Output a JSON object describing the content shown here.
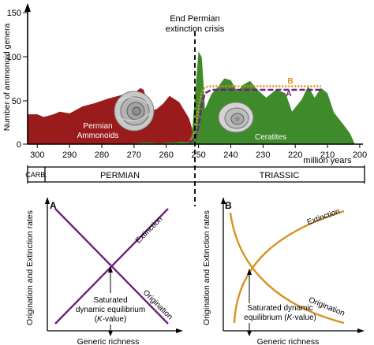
{
  "colors": {
    "permian_fill": "#9a1b1b",
    "triassic_fill": "#3f8a2a",
    "curve_a": "#6f1f7f",
    "curve_b": "#d89222",
    "crisis_line": "#000000"
  },
  "top_chart": {
    "ylabel": "Number of ammonoid genera",
    "yticks": [
      "0",
      "50",
      "100",
      "150"
    ],
    "xticks": [
      "300",
      "290",
      "280",
      "270",
      "260",
      "250",
      "240",
      "230",
      "220",
      "210",
      "200"
    ],
    "xunit": "million years",
    "crisis_label_1": "End Permian",
    "crisis_label_2": "extinction crisis",
    "permian_label_1": "Permian",
    "permian_label_2": "Ammonoids",
    "triassic_label": "Ceratites",
    "curve_a_label": "A",
    "curve_b_label": "B",
    "periods": [
      "CARB.",
      "PERMIAN",
      "TRIASSIC"
    ]
  },
  "chart_data": [
    {
      "type": "area",
      "title": "",
      "ylabel": "Number of ammonoid genera",
      "xlabel": "million years",
      "xlim": [
        303,
        199
      ],
      "ylim": [
        0,
        150
      ],
      "series": [
        {
          "name": "Permian Ammonoids",
          "x": [
            303,
            300,
            298,
            295,
            293,
            290,
            286,
            282,
            278,
            274,
            270,
            268,
            267,
            265,
            263,
            261,
            259,
            256,
            253,
            252,
            251
          ],
          "y": [
            34,
            34,
            31,
            34,
            37,
            35,
            43,
            47,
            52,
            56,
            58,
            64,
            62,
            38,
            40,
            46,
            55,
            48,
            30,
            18,
            2
          ]
        },
        {
          "name": "Ceratites",
          "x": [
            273,
            270,
            266,
            262,
            259,
            257,
            256,
            255,
            253,
            252.5,
            252,
            251,
            250,
            249,
            248.5,
            248,
            246,
            244,
            242,
            240,
            238,
            236,
            234,
            232,
            229,
            226,
            223,
            221,
            218,
            216,
            214,
            212,
            210,
            208,
            205,
            203,
            201.5
          ],
          "y": [
            0,
            1,
            2,
            1,
            2,
            2,
            3,
            3,
            2,
            4,
            12,
            60,
            106,
            99,
            72,
            40,
            57,
            65,
            75,
            73,
            60,
            68,
            72,
            63,
            53,
            62,
            58,
            37,
            51,
            66,
            53,
            64,
            58,
            36,
            22,
            12,
            0
          ]
        },
        {
          "name": "A",
          "x": [
            253,
            251,
            250,
            249,
            248,
            246,
            244,
            240,
            230,
            220,
            214,
            212
          ],
          "y": [
            2,
            5,
            20,
            45,
            58,
            62,
            62,
            62,
            62,
            62,
            62,
            62
          ]
        },
        {
          "name": "B",
          "x": [
            253,
            251,
            250,
            249,
            248,
            246,
            244,
            240,
            230,
            220,
            212
          ],
          "y": [
            2,
            15,
            42,
            60,
            65,
            66,
            66,
            66,
            66,
            66,
            66
          ]
        }
      ]
    },
    {
      "type": "line",
      "title": "A",
      "xlabel": "Generic richness",
      "ylabel": "Origination and Extinction rates",
      "series": [
        {
          "name": "Extinction",
          "x": [
            0,
            1
          ],
          "y": [
            0,
            1
          ]
        },
        {
          "name": "Origination",
          "x": [
            0,
            1
          ],
          "y": [
            1,
            0
          ]
        }
      ]
    },
    {
      "type": "line",
      "title": "B",
      "xlabel": "Generic richness",
      "ylabel": "Origination and Extinction rates",
      "series": [
        {
          "name": "Extinction",
          "x": [
            0,
            0.25,
            0.5,
            0.75,
            1
          ],
          "y": [
            0.05,
            0.55,
            0.75,
            0.88,
            0.97
          ]
        },
        {
          "name": "Origination",
          "x": [
            0,
            0.25,
            0.5,
            0.75,
            1
          ],
          "y": [
            0.95,
            0.45,
            0.25,
            0.12,
            0.03
          ]
        }
      ]
    }
  ],
  "panel_a": {
    "letter": "A",
    "ylabel": "Origination and Extinction rates",
    "xlabel": "Generic richness",
    "extinction_label": "Extinction",
    "origination_label": "Origination",
    "eq_line_1": "Saturated",
    "eq_line_2": "dynamic equilibrium",
    "eq_line_3_a": "(",
    "eq_line_3_k": "K",
    "eq_line_3_b": "-value)"
  },
  "panel_b": {
    "letter": "B",
    "ylabel": "Origination and Extinction rates",
    "xlabel": "Generic richness",
    "extinction_label": "Extinction",
    "origination_label": "Origination",
    "eq_line_1": "Saturated dynamic",
    "eq_line_2_a": "equilibrium (",
    "eq_line_2_k": "K",
    "eq_line_2_b": "-value)"
  }
}
